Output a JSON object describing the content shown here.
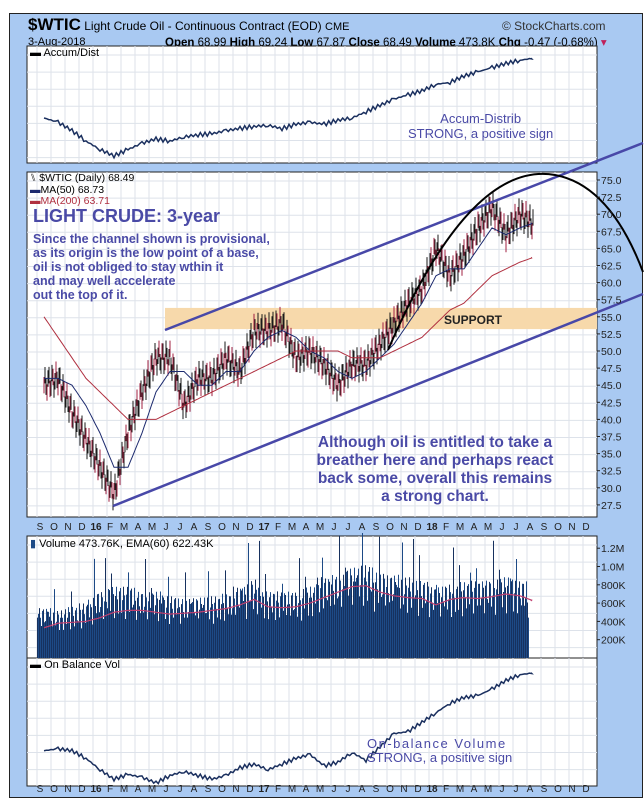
{
  "header": {
    "symbol": "$WTIC",
    "name": "Light Crude Oil - Continuous Contract (EOD)",
    "exchange": "CME",
    "copyright": "© StockCharts.com",
    "date": "3-Aug-2018",
    "open_label": "Open",
    "open": "68.99",
    "high_label": "High",
    "high": "69.24",
    "low_label": "Low",
    "low": "67.87",
    "close_label": "Close",
    "close": "68.49",
    "volume_label": "Volume",
    "volume": "473.8K",
    "chg_label": "Chg",
    "chg": "-0.47 (-0.68%)",
    "chg_color": "#c0205a"
  },
  "panels": {
    "accum": {
      "legend": "Accum/Dist",
      "note1": "Accum-Distrib",
      "note2": "STRONG, a positive sign"
    },
    "price": {
      "legend": "$WTIC (Daily) 68.49",
      "ma50": "MA(50) 68.73",
      "ma200": "MA(200) 63.71",
      "title": "LIGHT CRUDE: 3-year",
      "note_lines": [
        "Since the channel shown is provisional,",
        "as its origin is the low point of a base,",
        "oil is not obliged to stay wthin it",
        "and may well accelerate",
        "out the top of it."
      ],
      "support": "SUPPORT",
      "bottom_lines": [
        "Although oil is entitled to take a",
        "breather here and perhaps react",
        "back some, overall this remains",
        "a strong chart."
      ]
    },
    "volume": {
      "legend": "Volume 473.76K, EMA(60) 622.43K"
    },
    "obv": {
      "legend": "On Balance Vol",
      "note1": "On-balance  Volume",
      "note2": "STRONG, a positive sign"
    }
  },
  "colors": {
    "background": "#a9c9f2",
    "annotation": "#4a4aa6",
    "price": "#1a1a1a",
    "ma50": "#1c2a6e",
    "ma200": "#b03040",
    "volume": "#1d4a86",
    "ema": "#c04070",
    "support": "#f7d9ab"
  },
  "chart_data": [
    {
      "type": "line",
      "panel": "Accum/Dist",
      "x_months": "Sep 2015 - Aug 2018 (monthly)",
      "values": [
        40,
        36,
        28,
        18,
        10,
        4,
        10,
        16,
        20,
        18,
        22,
        24,
        25,
        28,
        30,
        32,
        33,
        30,
        34,
        36,
        34,
        38,
        40,
        46,
        52,
        58,
        62,
        66,
        72,
        74,
        80,
        84,
        88,
        92,
        95,
        97
      ]
    },
    {
      "type": "line",
      "panel": "$WTIC (Daily)",
      "ylim": [
        26,
        76
      ],
      "yticks": [
        "75.0",
        "72.5",
        "70.0",
        "67.5",
        "65.0",
        "62.5",
        "60.0",
        "57.5",
        "55.0",
        "52.5",
        "50.0",
        "47.5",
        "45.0",
        "42.5",
        "40.0",
        "37.5",
        "35.0",
        "32.5",
        "30.0",
        "27.5"
      ],
      "months": [
        "Sep15",
        "Oct15",
        "Nov15",
        "Dec15",
        "Jan16",
        "Feb16",
        "Mar16",
        "Apr16",
        "May16",
        "Jun16",
        "Jul16",
        "Aug16",
        "Sep16",
        "Oct16",
        "Nov16",
        "Dec16",
        "Jan17",
        "Feb17",
        "Mar17",
        "Apr17",
        "May17",
        "Jun17",
        "Jul17",
        "Aug17",
        "Sep17",
        "Oct17",
        "Nov17",
        "Dec17",
        "Jan18",
        "Feb18",
        "Mar18",
        "Apr18",
        "May18",
        "Jun18",
        "Jul18",
        "Aug18"
      ],
      "series": [
        {
          "name": "$WTIC",
          "values": [
            45,
            46,
            41,
            37,
            33,
            29,
            38,
            44,
            49,
            49,
            42,
            46,
            46,
            49,
            47,
            53,
            53,
            54,
            49,
            50,
            48,
            45,
            48,
            48,
            51,
            54,
            57,
            59,
            65,
            61,
            64,
            68,
            71,
            67,
            70,
            68.49
          ]
        },
        {
          "name": "MA(50)",
          "values": [
            46,
            46,
            45,
            42,
            38,
            33,
            33,
            38,
            44,
            47,
            47,
            45,
            45,
            47,
            47,
            50,
            52,
            53,
            52,
            50,
            49,
            47,
            46,
            47,
            49,
            51,
            54,
            57,
            61,
            62,
            62,
            65,
            68,
            67,
            68,
            68.73
          ]
        },
        {
          "name": "MA(200)",
          "values": [
            55,
            52,
            49,
            46,
            44,
            42,
            40,
            40,
            40,
            41,
            42,
            43,
            44,
            45,
            46,
            47,
            48,
            49,
            50,
            50,
            50,
            50,
            49,
            49,
            49,
            50,
            51,
            52,
            54,
            56,
            57,
            59,
            61,
            62,
            63,
            63.71
          ]
        }
      ]
    },
    {
      "type": "bar",
      "panel": "Volume",
      "unit": "K",
      "yticks": [
        "1.2M",
        "1.0M",
        "800K",
        "600K",
        "400K",
        "200K"
      ],
      "ylim": [
        0,
        1300
      ],
      "monthly_avg": [
        420,
        400,
        430,
        460,
        560,
        600,
        600,
        560,
        560,
        520,
        500,
        510,
        520,
        540,
        600,
        660,
        560,
        560,
        560,
        600,
        680,
        700,
        760,
        780,
        720,
        700,
        680,
        650,
        600,
        620,
        640,
        650,
        660,
        680,
        650,
        560
      ],
      "ema": [
        330,
        380,
        390,
        400,
        440,
        500,
        520,
        520,
        500,
        480,
        490,
        500,
        520,
        540,
        580,
        640,
        560,
        550,
        560,
        600,
        660,
        720,
        780,
        790,
        720,
        680,
        660,
        650,
        580,
        640,
        660,
        650,
        670,
        700,
        680,
        622.43
      ]
    },
    {
      "type": "line",
      "panel": "On Balance Vol",
      "values": [
        70,
        72,
        70,
        62,
        50,
        40,
        45,
        42,
        36,
        44,
        48,
        44,
        40,
        44,
        52,
        56,
        50,
        56,
        62,
        66,
        54,
        58,
        68,
        60,
        74,
        88,
        90,
        100,
        110,
        120,
        126,
        128,
        135,
        144,
        150,
        152
      ]
    },
    {
      "type": "axis",
      "months": [
        "S",
        "O",
        "N",
        "D",
        "16",
        "F",
        "M",
        "A",
        "M",
        "J",
        "J",
        "A",
        "S",
        "O",
        "N",
        "D",
        "17",
        "F",
        "M",
        "A",
        "M",
        "J",
        "J",
        "A",
        "S",
        "O",
        "N",
        "D",
        "18",
        "F",
        "M",
        "A",
        "M",
        "J",
        "J",
        "A",
        "S",
        "O",
        "N",
        "D"
      ]
    }
  ]
}
